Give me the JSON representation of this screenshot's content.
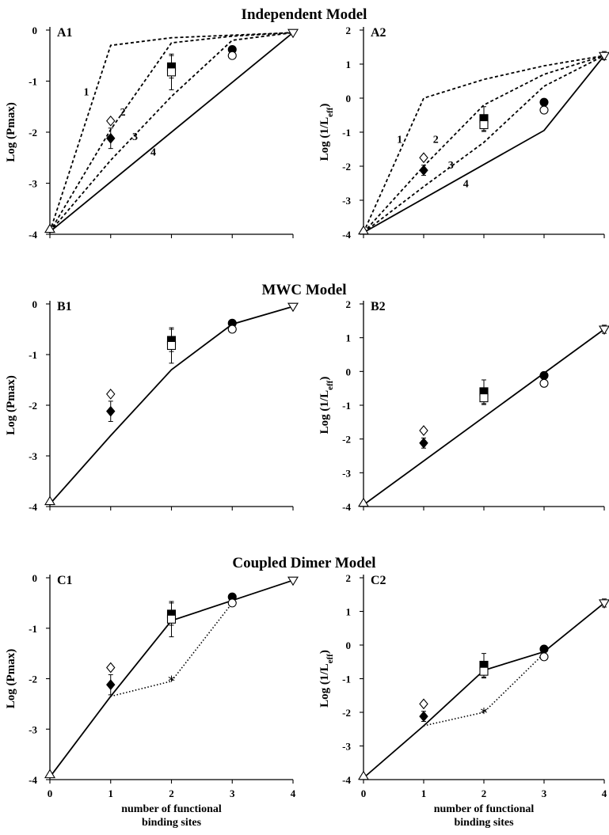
{
  "section_titles": [
    "Independent Model",
    "MWC Model",
    "Coupled Dimer Model"
  ],
  "x_label_line1": "number of functional",
  "x_label_line2": "binding sites",
  "ylabels": {
    "pmax": "Log (Pmax)",
    "leff_main": "Log (1/L",
    "leff_sub": "eff",
    "leff_end": ")"
  },
  "chart_data": [
    {
      "id": "A1",
      "type": "line",
      "title": "A1",
      "section": "Independent Model",
      "ylabel": "Log (Pmax)",
      "xlim": [
        0,
        4
      ],
      "ylim": [
        -4,
        0
      ],
      "x_ticks": [],
      "y_ticks": [
        0,
        -1,
        -2,
        -3,
        -4
      ],
      "series": [
        {
          "name": "1",
          "style": "dashed",
          "x": [
            0,
            1,
            2,
            3,
            4
          ],
          "y": [
            -3.95,
            -0.3,
            -0.15,
            -0.1,
            -0.05
          ]
        },
        {
          "name": "2",
          "style": "dashed",
          "x": [
            0,
            1,
            2,
            3,
            4
          ],
          "y": [
            -3.95,
            -1.95,
            -0.25,
            -0.12,
            -0.05
          ]
        },
        {
          "name": "3",
          "style": "dashed",
          "x": [
            0,
            1,
            2,
            3,
            4
          ],
          "y": [
            -3.95,
            -2.55,
            -1.3,
            -0.2,
            -0.05
          ]
        },
        {
          "name": "4",
          "style": "solid",
          "x": [
            0,
            4
          ],
          "y": [
            -3.95,
            -0.05
          ]
        }
      ],
      "points": [
        {
          "x": 0,
          "y": -3.9,
          "marker": "triangle-up"
        },
        {
          "x": 1,
          "y": -1.78,
          "marker": "diamond-open"
        },
        {
          "x": 1,
          "y": -2.12,
          "marker": "diamond-filled",
          "err": 0.2
        },
        {
          "x": 2,
          "y": -0.72,
          "marker": "square-filled",
          "err": 0.22
        },
        {
          "x": 2,
          "y": -0.82,
          "marker": "square-open",
          "err": 0.35
        },
        {
          "x": 3,
          "y": -0.38,
          "marker": "circle-filled"
        },
        {
          "x": 3,
          "y": -0.5,
          "marker": "circle-open"
        },
        {
          "x": 4,
          "y": -0.05,
          "marker": "triangle-down"
        }
      ],
      "curve_labels": [
        {
          "text": "1",
          "x": 0.6,
          "y": -1.2
        },
        {
          "text": "2",
          "x": 1.2,
          "y": -1.6
        },
        {
          "text": "3",
          "x": 1.4,
          "y": -2.08
        },
        {
          "text": "4",
          "x": 1.7,
          "y": -2.38
        }
      ]
    },
    {
      "id": "A2",
      "type": "line",
      "title": "A2",
      "section": "Independent Model",
      "ylabel": "Log (1/Leff)",
      "xlim": [
        0,
        4
      ],
      "ylim": [
        -4,
        2
      ],
      "x_ticks": [],
      "y_ticks": [
        2,
        1,
        0,
        -1,
        -2,
        -3,
        -4
      ],
      "series": [
        {
          "name": "1",
          "style": "dashed",
          "x": [
            0,
            1,
            2,
            3,
            4
          ],
          "y": [
            -3.95,
            0.0,
            0.55,
            0.95,
            1.25
          ]
        },
        {
          "name": "2",
          "style": "dashed",
          "x": [
            0,
            1,
            2,
            3,
            4
          ],
          "y": [
            -3.95,
            -2.0,
            -0.2,
            0.7,
            1.25
          ]
        },
        {
          "name": "3",
          "style": "dashed",
          "x": [
            0,
            1,
            2,
            3,
            4
          ],
          "y": [
            -3.95,
            -2.6,
            -1.3,
            0.35,
            1.25
          ]
        },
        {
          "name": "4",
          "style": "solid",
          "x": [
            0,
            3,
            4
          ],
          "y": [
            -3.95,
            -0.95,
            1.25
          ]
        }
      ],
      "points": [
        {
          "x": 0,
          "y": -3.9,
          "marker": "triangle-up"
        },
        {
          "x": 1,
          "y": -1.75,
          "marker": "diamond-open"
        },
        {
          "x": 1,
          "y": -2.12,
          "marker": "diamond-filled",
          "err": 0.15
        },
        {
          "x": 2,
          "y": -0.6,
          "marker": "square-filled",
          "err": 0.35
        },
        {
          "x": 2,
          "y": -0.78,
          "marker": "square-open",
          "err": 0.2
        },
        {
          "x": 3,
          "y": -0.12,
          "marker": "circle-filled"
        },
        {
          "x": 3,
          "y": -0.35,
          "marker": "circle-open"
        },
        {
          "x": 4,
          "y": 1.25,
          "marker": "triangle-down",
          "err": 0.12
        }
      ],
      "curve_labels": [
        {
          "text": "1",
          "x": 0.6,
          "y": -1.2
        },
        {
          "text": "2",
          "x": 1.2,
          "y": -1.2
        },
        {
          "text": "3",
          "x": 1.45,
          "y": -1.95
        },
        {
          "text": "4",
          "x": 1.7,
          "y": -2.5
        }
      ]
    },
    {
      "id": "B1",
      "type": "line",
      "title": "B1",
      "section": "MWC Model",
      "ylabel": "Log (Pmax)",
      "xlim": [
        0,
        4
      ],
      "ylim": [
        -4,
        0
      ],
      "x_ticks": [],
      "y_ticks": [
        0,
        -1,
        -2,
        -3,
        -4
      ],
      "series": [
        {
          "name": "",
          "style": "solid",
          "x": [
            0,
            1,
            2,
            3,
            4
          ],
          "y": [
            -3.95,
            -2.6,
            -1.3,
            -0.4,
            -0.05
          ]
        }
      ],
      "points": [
        {
          "x": 0,
          "y": -3.9,
          "marker": "triangle-up"
        },
        {
          "x": 1,
          "y": -1.78,
          "marker": "diamond-open"
        },
        {
          "x": 1,
          "y": -2.12,
          "marker": "diamond-filled",
          "err": 0.2
        },
        {
          "x": 2,
          "y": -0.72,
          "marker": "square-filled",
          "err": 0.22
        },
        {
          "x": 2,
          "y": -0.82,
          "marker": "square-open",
          "err": 0.35
        },
        {
          "x": 3,
          "y": -0.38,
          "marker": "circle-filled"
        },
        {
          "x": 3,
          "y": -0.5,
          "marker": "circle-open"
        },
        {
          "x": 4,
          "y": -0.05,
          "marker": "triangle-down"
        }
      ],
      "curve_labels": []
    },
    {
      "id": "B2",
      "type": "line",
      "title": "B2",
      "section": "MWC Model",
      "ylabel": "Log (1/Leff)",
      "xlim": [
        0,
        4
      ],
      "ylim": [
        -4,
        2
      ],
      "x_ticks": [],
      "y_ticks": [
        2,
        1,
        0,
        -1,
        -2,
        -3,
        -4
      ],
      "series": [
        {
          "name": "",
          "style": "solid",
          "x": [
            0,
            4
          ],
          "y": [
            -3.95,
            1.25
          ]
        }
      ],
      "points": [
        {
          "x": 0,
          "y": -3.9,
          "marker": "triangle-up"
        },
        {
          "x": 1,
          "y": -1.75,
          "marker": "diamond-open"
        },
        {
          "x": 1,
          "y": -2.12,
          "marker": "diamond-filled",
          "err": 0.15
        },
        {
          "x": 2,
          "y": -0.6,
          "marker": "square-filled",
          "err": 0.35
        },
        {
          "x": 2,
          "y": -0.78,
          "marker": "square-open",
          "err": 0.2
        },
        {
          "x": 3,
          "y": -0.12,
          "marker": "circle-filled"
        },
        {
          "x": 3,
          "y": -0.35,
          "marker": "circle-open"
        },
        {
          "x": 4,
          "y": 1.25,
          "marker": "triangle-down",
          "err": 0.12
        }
      ],
      "curve_labels": []
    },
    {
      "id": "C1",
      "type": "line",
      "title": "C1",
      "section": "Coupled Dimer Model",
      "ylabel": "Log (Pmax)",
      "xlim": [
        0,
        4
      ],
      "ylim": [
        -4,
        0
      ],
      "x_ticks": [
        "0",
        "1",
        "2",
        "3",
        "4"
      ],
      "y_ticks": [
        0,
        -1,
        -2,
        -3,
        -4
      ],
      "series": [
        {
          "name": "",
          "style": "solid",
          "x": [
            0,
            1,
            2,
            3,
            4
          ],
          "y": [
            -3.95,
            -2.35,
            -0.85,
            -0.45,
            -0.05
          ]
        },
        {
          "name": "",
          "style": "dotted",
          "x": [
            1,
            2,
            3
          ],
          "y": [
            -2.35,
            -2.05,
            -0.5
          ]
        }
      ],
      "points": [
        {
          "x": 0,
          "y": -3.9,
          "marker": "triangle-up"
        },
        {
          "x": 1,
          "y": -1.78,
          "marker": "diamond-open"
        },
        {
          "x": 1,
          "y": -2.12,
          "marker": "diamond-filled",
          "err": 0.2
        },
        {
          "x": 2,
          "y": -0.72,
          "marker": "square-filled",
          "err": 0.22
        },
        {
          "x": 2,
          "y": -0.82,
          "marker": "square-open",
          "err": 0.35
        },
        {
          "x": 2,
          "y": -2.0,
          "marker": "asterisk"
        },
        {
          "x": 3,
          "y": -0.38,
          "marker": "circle-filled"
        },
        {
          "x": 3,
          "y": -0.5,
          "marker": "circle-open"
        },
        {
          "x": 4,
          "y": -0.05,
          "marker": "triangle-down"
        }
      ],
      "curve_labels": []
    },
    {
      "id": "C2",
      "type": "line",
      "title": "C2",
      "section": "Coupled Dimer Model",
      "ylabel": "Log (1/Leff)",
      "xlim": [
        0,
        4
      ],
      "ylim": [
        -4,
        2
      ],
      "x_ticks": [
        "0",
        "1",
        "2",
        "3",
        "4"
      ],
      "y_ticks": [
        2,
        1,
        0,
        -1,
        -2,
        -3,
        -4
      ],
      "series": [
        {
          "name": "",
          "style": "solid",
          "x": [
            0,
            1,
            2,
            3,
            4
          ],
          "y": [
            -3.95,
            -2.4,
            -0.75,
            -0.2,
            1.25
          ]
        },
        {
          "name": "",
          "style": "dotted",
          "x": [
            1,
            2,
            3
          ],
          "y": [
            -2.4,
            -2.0,
            -0.25
          ]
        }
      ],
      "points": [
        {
          "x": 0,
          "y": -3.9,
          "marker": "triangle-up"
        },
        {
          "x": 1,
          "y": -1.75,
          "marker": "diamond-open"
        },
        {
          "x": 1,
          "y": -2.12,
          "marker": "diamond-filled",
          "err": 0.15
        },
        {
          "x": 2,
          "y": -0.6,
          "marker": "square-filled",
          "err": 0.35
        },
        {
          "x": 2,
          "y": -0.78,
          "marker": "square-open",
          "err": 0.2
        },
        {
          "x": 2,
          "y": -1.95,
          "marker": "asterisk"
        },
        {
          "x": 3,
          "y": -0.12,
          "marker": "circle-filled"
        },
        {
          "x": 3,
          "y": -0.35,
          "marker": "circle-open"
        },
        {
          "x": 4,
          "y": 1.25,
          "marker": "triangle-down",
          "err": 0.12
        }
      ],
      "curve_labels": []
    }
  ]
}
